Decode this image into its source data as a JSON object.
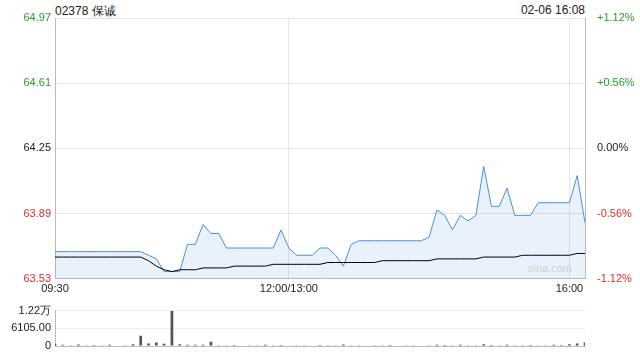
{
  "chart_data": [
    {
      "type": "line",
      "title": "02378 保诚",
      "subtitle": "02-06 16:08",
      "annotation": "sina.com",
      "grid": true,
      "categories": [
        "09:30",
        null,
        null,
        null,
        null,
        null,
        null,
        null,
        null,
        null,
        null,
        null,
        null,
        null,
        null,
        null,
        null,
        null,
        null,
        null,
        null,
        null,
        null,
        null,
        null,
        null,
        null,
        null,
        null,
        null,
        "12:00/13:00",
        null,
        null,
        null,
        null,
        null,
        null,
        null,
        null,
        null,
        null,
        null,
        null,
        null,
        null,
        null,
        null,
        null,
        null,
        null,
        null,
        null,
        null,
        null,
        null,
        null,
        null,
        null,
        null,
        null,
        null,
        null,
        null,
        null,
        null,
        null,
        "16:00",
        null,
        null
      ],
      "series": [
        {
          "type": "area",
          "color": "#4a8fe0",
          "values": [
            63.68,
            63.68,
            63.68,
            63.68,
            63.68,
            63.68,
            63.68,
            63.68,
            63.68,
            63.68,
            63.68,
            63.68,
            63.66,
            63.64,
            63.57,
            63.57,
            63.57,
            63.72,
            63.72,
            63.83,
            63.78,
            63.78,
            63.7,
            63.7,
            63.7,
            63.7,
            63.7,
            63.7,
            63.7,
            63.8,
            63.7,
            63.66,
            63.66,
            63.66,
            63.7,
            63.7,
            63.66,
            63.6,
            63.72,
            63.74,
            63.74,
            63.74,
            63.74,
            63.74,
            63.74,
            63.74,
            63.74,
            63.74,
            63.76,
            63.91,
            63.88,
            63.8,
            63.88,
            63.85,
            63.88,
            64.15,
            63.93,
            63.93,
            64.03,
            63.88,
            63.88,
            63.88,
            63.95,
            63.95,
            63.95,
            63.95,
            63.95,
            64.1,
            63.84
          ]
        },
        {
          "type": "line",
          "color": "#000000",
          "values": [
            63.65,
            63.65,
            63.65,
            63.65,
            63.65,
            63.65,
            63.65,
            63.65,
            63.65,
            63.65,
            63.65,
            63.65,
            63.63,
            63.6,
            63.58,
            63.57,
            63.58,
            63.58,
            63.58,
            63.59,
            63.59,
            63.59,
            63.59,
            63.6,
            63.6,
            63.6,
            63.6,
            63.6,
            63.61,
            63.61,
            63.61,
            63.61,
            63.61,
            63.61,
            63.61,
            63.62,
            63.62,
            63.62,
            63.62,
            63.62,
            63.62,
            63.62,
            63.63,
            63.63,
            63.63,
            63.63,
            63.63,
            63.63,
            63.63,
            63.64,
            63.64,
            63.64,
            63.64,
            63.64,
            63.64,
            63.65,
            63.65,
            63.65,
            63.65,
            63.65,
            63.66,
            63.66,
            63.66,
            63.66,
            63.66,
            63.66,
            63.66,
            63.67,
            63.67
          ]
        }
      ],
      "ylim": [
        63.53,
        64.97
      ],
      "yticks": [
        63.53,
        63.89,
        64.25,
        64.61,
        64.97
      ],
      "y2lim": [
        -1.12,
        1.12
      ],
      "y2ticks": [
        {
          "value": -1.12,
          "label": "-1.12%"
        },
        {
          "value": -0.56,
          "label": "-0.56%"
        },
        {
          "value": 0,
          "label": "0.00%"
        },
        {
          "value": 0.56,
          "label": "+0.56%"
        },
        {
          "value": 1.12,
          "label": "+1.12%"
        }
      ]
    },
    {
      "type": "bar",
      "color": "#555555",
      "tick_labels": "y",
      "values": [
        800,
        400,
        300,
        500,
        250,
        350,
        300,
        450,
        200,
        300,
        600,
        3500,
        900,
        1200,
        800,
        12200,
        600,
        400,
        450,
        400,
        1500,
        300,
        250,
        350,
        200,
        300,
        250,
        400,
        300,
        350,
        200,
        250,
        300,
        200,
        350,
        250,
        300,
        500,
        300,
        250,
        200,
        300,
        250,
        350,
        200,
        300,
        250,
        200,
        300,
        450,
        350,
        300,
        400,
        250,
        300,
        600,
        350,
        300,
        400,
        250,
        300,
        350,
        300,
        250,
        400,
        350,
        600,
        900,
        1200
      ],
      "ylim": [
        0,
        12210
      ],
      "yticks": [
        0,
        {
          "value": 6105,
          "label": "6105.00"
        },
        {
          "value": 12210,
          "label": "1.22万"
        }
      ]
    }
  ]
}
